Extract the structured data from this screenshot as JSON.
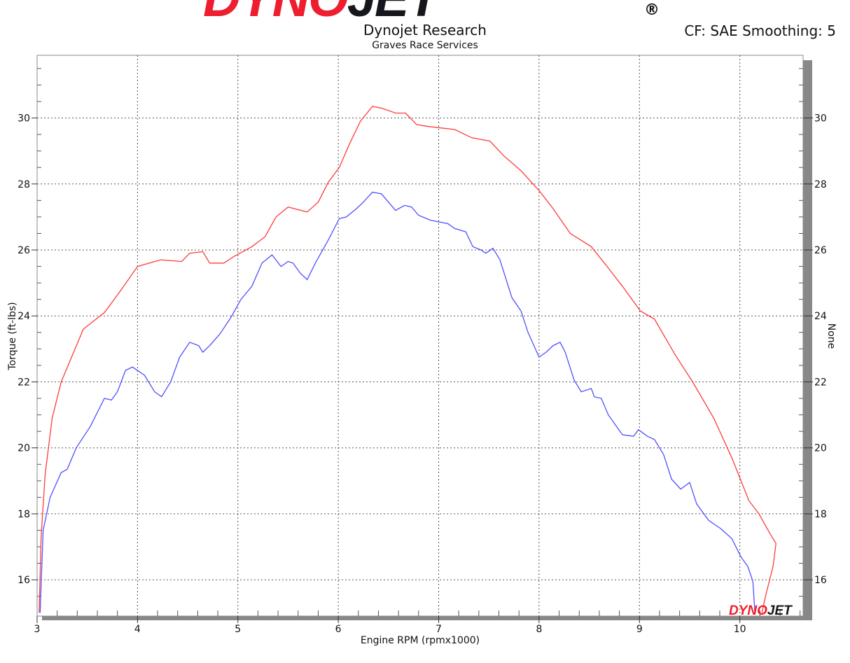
{
  "header": {
    "logo": "DYNOJET",
    "title": "Dynojet Research",
    "subtitle": "Graves Race Services",
    "correction": "CF: SAE Smoothing: 5"
  },
  "corner_logo": "DYNOJET",
  "chart_data": {
    "type": "line",
    "title": "Dynojet Research",
    "subtitle": "Graves Race Services",
    "xlabel": "Engine RPM (rpmx1000)",
    "ylabel": "Torque (ft-lbs)",
    "y2label": "None",
    "xlim": [
      3,
      10.63
    ],
    "ylim": [
      14.9,
      31.9
    ],
    "xticks": [
      3,
      4,
      5,
      6,
      7,
      8,
      9,
      10
    ],
    "yticks": [
      16,
      18,
      20,
      22,
      24,
      26,
      28,
      30
    ],
    "grid": true,
    "legend": "none",
    "series": [
      {
        "color": "#ff3b3b",
        "x": [
          3.02,
          3.04,
          3.08,
          3.15,
          3.24,
          3.46,
          3.67,
          3.84,
          4.0,
          4.23,
          4.44,
          4.52,
          4.65,
          4.72,
          4.86,
          4.96,
          5.14,
          5.27,
          5.38,
          5.5,
          5.69,
          5.8,
          5.9,
          6.01,
          6.11,
          6.22,
          6.34,
          6.43,
          6.57,
          6.67,
          6.78,
          6.88,
          7.02,
          7.16,
          7.33,
          7.51,
          7.65,
          7.82,
          8.0,
          8.14,
          8.31,
          8.52,
          8.69,
          8.83,
          9.01,
          9.15,
          9.36,
          9.53,
          9.74,
          9.92,
          10.09,
          10.19,
          10.3,
          10.36,
          10.33,
          10.26,
          10.22
        ],
        "y": [
          15.0,
          17.3,
          19.2,
          20.9,
          22.0,
          23.6,
          24.1,
          24.8,
          25.5,
          25.7,
          25.65,
          25.9,
          25.95,
          25.6,
          25.6,
          25.8,
          26.1,
          26.4,
          27.0,
          27.3,
          27.15,
          27.45,
          28.05,
          28.5,
          29.2,
          29.9,
          30.35,
          30.3,
          30.15,
          30.15,
          29.8,
          29.75,
          29.7,
          29.65,
          29.4,
          29.3,
          28.85,
          28.4,
          27.8,
          27.25,
          26.5,
          26.1,
          25.45,
          24.9,
          24.15,
          23.9,
          22.8,
          22.0,
          20.9,
          19.7,
          18.4,
          18.0,
          17.4,
          17.1,
          16.4,
          15.55,
          15.0
        ]
      },
      {
        "color": "#5050ff",
        "x": [
          3.03,
          3.06,
          3.13,
          3.24,
          3.3,
          3.39,
          3.53,
          3.67,
          3.74,
          3.8,
          3.88,
          3.95,
          4.07,
          4.17,
          4.24,
          4.33,
          4.42,
          4.52,
          4.61,
          4.65,
          4.72,
          4.82,
          4.93,
          5.03,
          5.14,
          5.24,
          5.34,
          5.43,
          5.5,
          5.55,
          5.62,
          5.69,
          5.78,
          5.9,
          6.01,
          6.08,
          6.18,
          6.25,
          6.34,
          6.43,
          6.5,
          6.57,
          6.66,
          6.73,
          6.8,
          6.92,
          7.0,
          7.09,
          7.16,
          7.27,
          7.34,
          7.42,
          7.47,
          7.54,
          7.61,
          7.73,
          7.82,
          7.89,
          8.0,
          8.07,
          8.14,
          8.21,
          8.26,
          8.35,
          8.42,
          8.52,
          8.55,
          8.62,
          8.69,
          8.76,
          8.83,
          8.94,
          8.99,
          9.08,
          9.15,
          9.24,
          9.32,
          9.41,
          9.5,
          9.57,
          9.69,
          9.81,
          9.92,
          10.01,
          10.08,
          10.13,
          10.15
        ],
        "y": [
          15.0,
          17.5,
          18.5,
          19.25,
          19.35,
          20.0,
          20.65,
          21.5,
          21.45,
          21.7,
          22.35,
          22.45,
          22.2,
          21.7,
          21.55,
          22.0,
          22.75,
          23.2,
          23.1,
          22.9,
          23.1,
          23.45,
          23.95,
          24.5,
          24.9,
          25.6,
          25.85,
          25.5,
          25.65,
          25.6,
          25.3,
          25.1,
          25.65,
          26.3,
          26.95,
          27.0,
          27.25,
          27.45,
          27.75,
          27.7,
          27.45,
          27.2,
          27.35,
          27.3,
          27.05,
          26.9,
          26.85,
          26.8,
          26.65,
          26.55,
          26.1,
          26.0,
          25.9,
          26.05,
          25.7,
          24.55,
          24.15,
          23.5,
          22.75,
          22.9,
          23.1,
          23.2,
          22.9,
          22.05,
          21.7,
          21.8,
          21.55,
          21.5,
          21.0,
          20.7,
          20.4,
          20.35,
          20.55,
          20.35,
          20.25,
          19.8,
          19.05,
          18.75,
          18.95,
          18.3,
          17.8,
          17.55,
          17.25,
          16.7,
          16.4,
          15.95,
          15.0
        ]
      }
    ]
  }
}
